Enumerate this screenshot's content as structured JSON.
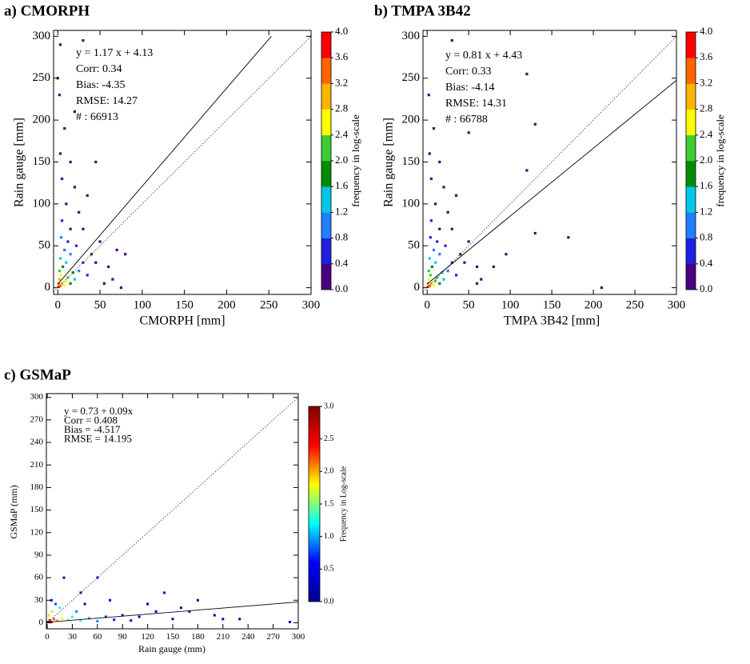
{
  "chart_data": [
    {
      "type": "scatter",
      "title": "a)  CMORPH",
      "xlabel": "CMORPH [mm]",
      "ylabel": "Rain gauge [mm]",
      "annotations": [
        "y = 1.17 x + 4.13",
        "Corr: 0.34",
        "Bias: -4.35",
        "RMSE: 14.27",
        "#   : 66913"
      ],
      "xlim": [
        -5,
        300
      ],
      "ylim": [
        -8,
        307
      ],
      "xticks": [
        0,
        50,
        100,
        150,
        200,
        250,
        300
      ],
      "yticks": [
        0,
        50,
        100,
        150,
        200,
        250,
        300
      ],
      "diagonal": true,
      "fit_line": {
        "x": [
          0,
          253
        ],
        "y": [
          4.13,
          300
        ]
      },
      "x": [
        1,
        3,
        1,
        5,
        2,
        8,
        4,
        10,
        12,
        2,
        6,
        15,
        18,
        3,
        10,
        20,
        25,
        8,
        15,
        30,
        4,
        12,
        22,
        35,
        40,
        5,
        15,
        25,
        10,
        20,
        5,
        30,
        45,
        50,
        60,
        65,
        70,
        80,
        3,
        15,
        35,
        8,
        2,
        30,
        3,
        45,
        20,
        55,
        75,
        0
      ],
      "y": [
        1,
        2,
        5,
        5,
        10,
        3,
        15,
        8,
        12,
        20,
        25,
        5,
        18,
        35,
        30,
        10,
        20,
        45,
        40,
        30,
        60,
        55,
        50,
        15,
        40,
        80,
        70,
        90,
        100,
        120,
        130,
        70,
        30,
        55,
        25,
        10,
        45,
        40,
        160,
        150,
        110,
        190,
        230,
        295,
        290,
        150,
        210,
        5,
        0,
        250
      ],
      "values": [
        3.9,
        3.5,
        3.3,
        3.0,
        2.9,
        2.7,
        2.5,
        2.4,
        2.1,
        2.2,
        1.9,
        1.9,
        1.6,
        1.5,
        1.4,
        1.3,
        1.0,
        1.0,
        0.9,
        0.7,
        0.8,
        0.6,
        0.5,
        0.5,
        0.3,
        0.5,
        0.3,
        0.2,
        0.3,
        0.2,
        0.3,
        0.2,
        0.1,
        0.1,
        0.1,
        0.1,
        0.1,
        0.1,
        0.2,
        0.1,
        0.1,
        0.1,
        0.1,
        0.1,
        0.1,
        0.1,
        0.1,
        0.1,
        0.1,
        0.1
      ],
      "colorbar": {
        "label": "frequency in log-scale",
        "lim": [
          0,
          4
        ],
        "discrete": true,
        "colors": [
          "#4b0082",
          "#2020e0",
          "#1e7fff",
          "#00c8e6",
          "#008c00",
          "#3ccd32",
          "#ffff00",
          "#ffb400",
          "#ff6400",
          "#ff0000"
        ],
        "ticks": [
          {
            "value": 0,
            "label": "0.0"
          },
          {
            "value": 0.4,
            "label": "0.4"
          },
          {
            "value": 0.8,
            "label": "0.8"
          },
          {
            "value": 1.2,
            "label": "1.2"
          },
          {
            "value": 1.6,
            "label": "1.6"
          },
          {
            "value": 2,
            "label": "2.0"
          },
          {
            "value": 2.4,
            "label": "2.4"
          },
          {
            "value": 2.8,
            "label": "2.8"
          },
          {
            "value": 3.2,
            "label": "3.2"
          },
          {
            "value": 3.6,
            "label": "3.6"
          },
          {
            "value": 4,
            "label": "4.0"
          }
        ]
      }
    },
    {
      "type": "scatter",
      "title": "b)  TMPA  3B42",
      "xlabel": "TMPA 3B42 [mm]",
      "ylabel": "Rain gauge [mm]",
      "annotations": [
        "y = 0.81 x + 4.43",
        "Corr: 0.33",
        "Bias: -4.14",
        "RMSE: 14.31",
        "#   : 66788"
      ],
      "xlim": [
        -5,
        300
      ],
      "ylim": [
        -8,
        307
      ],
      "xticks": [
        0,
        50,
        100,
        150,
        200,
        250,
        300
      ],
      "yticks": [
        0,
        50,
        100,
        150,
        200,
        250,
        300
      ],
      "diagonal": true,
      "fit_line": {
        "x": [
          0,
          300
        ],
        "y": [
          4.43,
          247.43
        ]
      },
      "x": [
        1,
        3,
        1,
        5,
        2,
        8,
        4,
        10,
        12,
        2,
        6,
        15,
        18,
        3,
        10,
        20,
        25,
        8,
        15,
        30,
        4,
        12,
        22,
        35,
        40,
        5,
        15,
        25,
        10,
        20,
        5,
        30,
        45,
        50,
        60,
        65,
        3,
        15,
        35,
        8,
        2,
        30,
        120,
        130,
        120,
        130,
        170,
        210,
        80,
        95,
        50,
        60
      ],
      "y": [
        1,
        2,
        5,
        5,
        10,
        3,
        15,
        8,
        12,
        20,
        25,
        5,
        18,
        35,
        30,
        10,
        20,
        45,
        40,
        30,
        60,
        55,
        50,
        15,
        40,
        80,
        70,
        90,
        100,
        120,
        130,
        70,
        30,
        55,
        25,
        10,
        160,
        150,
        110,
        190,
        230,
        295,
        255,
        195,
        140,
        65,
        60,
        0,
        25,
        40,
        185,
        5
      ],
      "values": [
        3.6,
        3.3,
        3.1,
        2.8,
        2.7,
        2.5,
        2.3,
        2.2,
        2.0,
        2.0,
        1.8,
        1.7,
        1.5,
        1.4,
        1.3,
        1.2,
        1.0,
        0.9,
        0.8,
        0.7,
        0.7,
        0.6,
        0.5,
        0.4,
        0.3,
        0.5,
        0.3,
        0.2,
        0.3,
        0.2,
        0.3,
        0.2,
        0.1,
        0.1,
        0.1,
        0.1,
        0.2,
        0.1,
        0.1,
        0.1,
        0.1,
        0.1,
        0.1,
        0.1,
        0.1,
        0.1,
        0.1,
        0.1,
        0.1,
        0.1,
        0.1,
        0.1
      ],
      "colorbar": {
        "label": "frequency in log-scale",
        "lim": [
          0,
          4
        ],
        "discrete": true,
        "colors": [
          "#4b0082",
          "#2020e0",
          "#1e7fff",
          "#00c8e6",
          "#008c00",
          "#3ccd32",
          "#ffff00",
          "#ffb400",
          "#ff6400",
          "#ff0000"
        ],
        "ticks": [
          {
            "value": 0,
            "label": "0.0"
          },
          {
            "value": 0.4,
            "label": "0.4"
          },
          {
            "value": 0.8,
            "label": "0.8"
          },
          {
            "value": 1.2,
            "label": "1.2"
          },
          {
            "value": 1.6,
            "label": "1.6"
          },
          {
            "value": 2,
            "label": "2.0"
          },
          {
            "value": 2.4,
            "label": "2.4"
          },
          {
            "value": 2.8,
            "label": "2.8"
          },
          {
            "value": 3.2,
            "label": "3.2"
          },
          {
            "value": 3.6,
            "label": "3.6"
          },
          {
            "value": 4,
            "label": "4.0"
          }
        ]
      }
    },
    {
      "type": "scatter",
      "title": "c)  GSMaP",
      "xlabel": "Rain gauge (mm)",
      "ylabel": "GSMaP (mm)",
      "annotations": [
        "y =   0.73 +  0.09x",
        "Corr =   0.408",
        "Bias =   -4.517",
        "RMSE =  14.195"
      ],
      "xlim": [
        -1,
        300
      ],
      "ylim": [
        -8,
        305
      ],
      "xticks": [
        0,
        30,
        60,
        90,
        120,
        150,
        180,
        210,
        240,
        270,
        300
      ],
      "yticks": [
        0,
        30,
        60,
        90,
        120,
        150,
        180,
        210,
        240,
        270,
        300
      ],
      "diagonal": true,
      "fit_line": {
        "x": [
          0,
          300
        ],
        "y": [
          0.73,
          27.73
        ]
      },
      "x": [
        1,
        3,
        5,
        8,
        12,
        2,
        18,
        25,
        6,
        30,
        40,
        15,
        50,
        60,
        35,
        10,
        70,
        80,
        45,
        90,
        100,
        110,
        20,
        60,
        130,
        140,
        120,
        150,
        170,
        180,
        200,
        230,
        290,
        5,
        40,
        75,
        160,
        210
      ],
      "y": [
        1,
        3,
        1,
        5,
        3,
        10,
        6,
        4,
        15,
        8,
        3,
        20,
        6,
        2,
        15,
        25,
        8,
        4,
        25,
        10,
        3,
        8,
        60,
        60,
        15,
        40,
        25,
        5,
        15,
        30,
        10,
        5,
        1,
        30,
        40,
        30,
        20,
        5
      ],
      "values": [
        2.9,
        2.6,
        2.4,
        2.2,
        2.0,
        1.9,
        1.7,
        1.5,
        1.6,
        1.3,
        1.2,
        1.2,
        1.0,
        0.9,
        0.9,
        0.8,
        0.7,
        0.6,
        0.5,
        0.5,
        0.4,
        0.3,
        0.2,
        0.2,
        0.2,
        0.2,
        0.1,
        0.1,
        0.1,
        0.1,
        0.1,
        0.1,
        0.1,
        0.3,
        0.2,
        0.2,
        0.1,
        0.1
      ],
      "colorbar": {
        "label": "Frequency in Log-scale",
        "lim": [
          0,
          3
        ],
        "discrete": false,
        "colors": [
          "#00008f",
          "#0000ff",
          "#00ffff",
          "#ffff00",
          "#ff0000",
          "#800000"
        ],
        "ticks": [
          {
            "value": 0,
            "label": "0.0"
          },
          {
            "value": 0.5,
            "label": "0.5"
          },
          {
            "value": 1,
            "label": "1.0"
          },
          {
            "value": 1.5,
            "label": "1.5"
          },
          {
            "value": 2,
            "label": "2.0"
          },
          {
            "value": 2.5,
            "label": "2.5"
          },
          {
            "value": 3,
            "label": "3.0"
          }
        ]
      }
    }
  ]
}
